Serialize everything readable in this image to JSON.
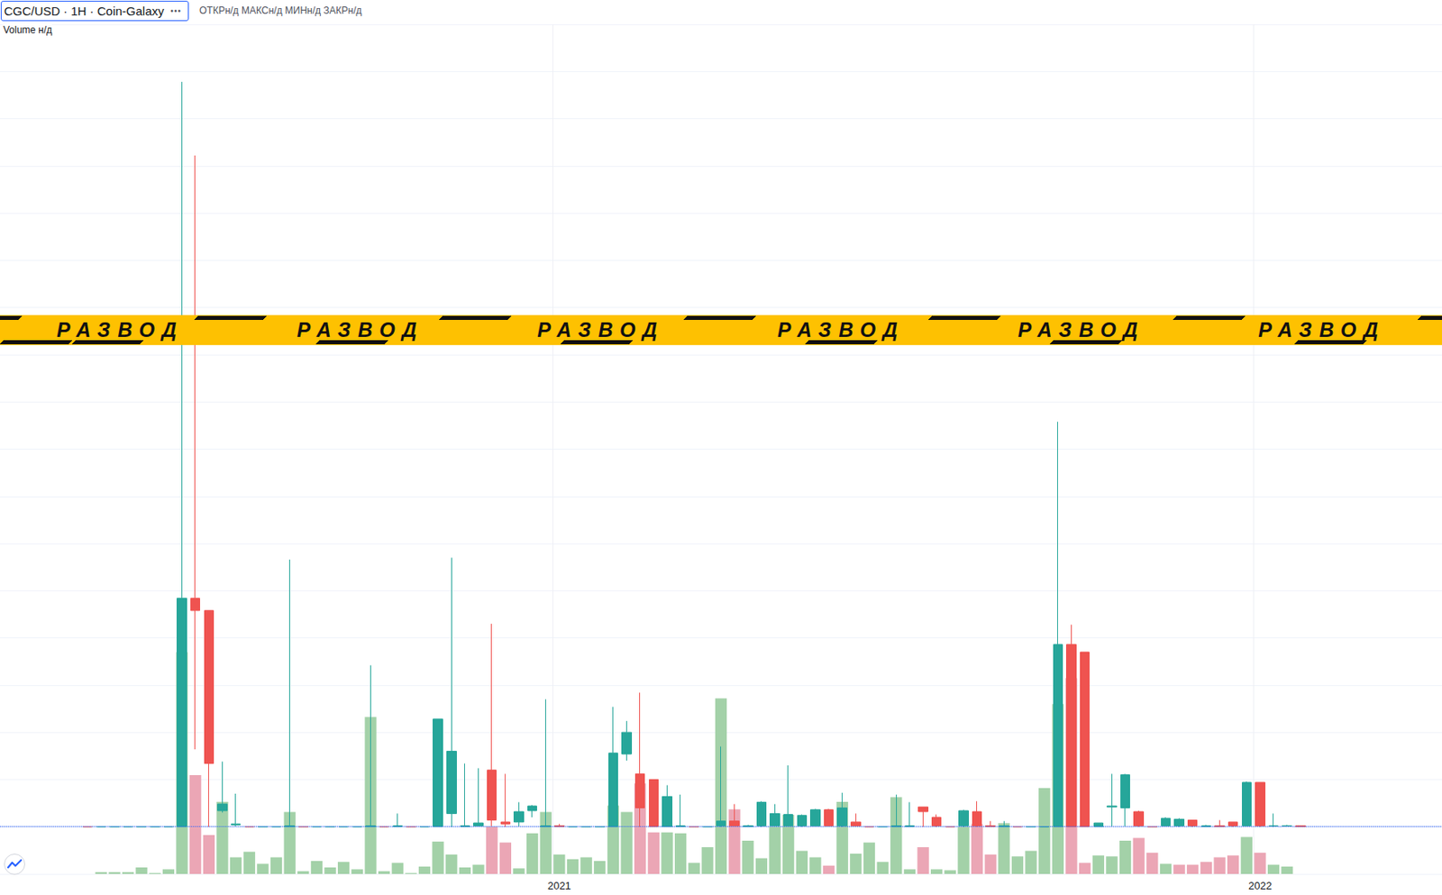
{
  "chart_data": {
    "type": "candlestick",
    "title": "CGC/USD · 1H · Coin-Galaxy",
    "annotations": {
      "menu": "•••",
      "ohlc": "ОТКРн/д МАКСн/д МИНн/д ЗАКРн/д",
      "volume": "Volume н/д",
      "banner": [
        "РАЗВОД",
        "РАЗВОД",
        "РАЗВОД",
        "РАЗВОД",
        "РАЗВОД",
        "РАЗВОД"
      ]
    },
    "categories": [
      null,
      null,
      null,
      null,
      null,
      null,
      null,
      null,
      null,
      null,
      null,
      null,
      null,
      null,
      null,
      null,
      null,
      null,
      null,
      null,
      null,
      null,
      null,
      null,
      null,
      null,
      null,
      null,
      null,
      null,
      null,
      null,
      null,
      null,
      null,
      null,
      null,
      null,
      null,
      null,
      null,
      "2021",
      null,
      null,
      null,
      null,
      null,
      null,
      null,
      null,
      null,
      null,
      null,
      null,
      null,
      null,
      null,
      null,
      null,
      null,
      null,
      null,
      null,
      null,
      null,
      null,
      null,
      null,
      null,
      null,
      null,
      null,
      null,
      null,
      null,
      null,
      null,
      null,
      null,
      null,
      null,
      null,
      null,
      null,
      null,
      null,
      null,
      null,
      null,
      null,
      null,
      null,
      null,
      "2022",
      null,
      null,
      null,
      null,
      null,
      null,
      null,
      null,
      null,
      null,
      null,
      null,
      null
    ],
    "series": [
      {
        "name": "CGC/USD",
        "type": "candlestick",
        "colors": [
          "#26a69a",
          "#ef5350"
        ],
        "open": [
          null,
          null,
          null,
          null,
          null,
          null,
          0,
          0,
          0,
          0,
          0,
          0,
          0,
          0,
          24.2,
          22.9,
          1.7,
          0.2,
          0,
          0,
          0,
          0,
          0,
          0,
          0,
          0,
          0,
          0,
          0,
          0,
          0,
          0,
          0,
          1.4,
          0,
          0.1,
          6.0,
          0.5,
          0.5,
          1.7,
          0,
          0.1,
          0,
          0,
          0,
          0,
          7.7,
          5.6,
          5.0,
          0,
          0,
          0,
          0,
          0.1,
          0.6,
          0,
          0.1,
          0.1,
          0.1,
          0.1,
          0.1,
          1.8,
          0.1,
          0.5,
          0,
          0,
          0,
          0,
          2.1,
          1.0,
          0,
          0.1,
          1.6,
          0.1,
          0,
          0,
          0,
          0,
          0,
          19.3,
          18.5,
          0,
          2.1,
          2.0,
          1.6,
          0,
          0.1,
          0.1,
          0.7,
          0,
          0.1,
          0.5,
          0.1,
          4.7,
          0.1,
          0.1,
          0.1,
          null,
          null,
          null,
          null,
          null,
          null,
          null,
          null,
          null,
          null
        ],
        "close": [
          null,
          null,
          null,
          null,
          null,
          null,
          0,
          0,
          0,
          0,
          0,
          0,
          0,
          24.2,
          22.9,
          6.7,
          2.4,
          0.3,
          0,
          0,
          0,
          0.1,
          0,
          0,
          0,
          0,
          0,
          0.1,
          0,
          0.1,
          0,
          0,
          11.4,
          8.0,
          0.1,
          0.4,
          0.7,
          0.3,
          1.6,
          2.2,
          0.1,
          0,
          0,
          0,
          0,
          7.8,
          10,
          2.0,
          0,
          3.2,
          0.1,
          0,
          0,
          0.6,
          0.1,
          0.1,
          2.6,
          1.4,
          1.3,
          1.2,
          1.8,
          0.1,
          2.0,
          0.1,
          0,
          0,
          0.1,
          0.1,
          1.6,
          0.1,
          0,
          1.7,
          0.1,
          0,
          0.1,
          0,
          0,
          0,
          19.3,
          0,
          0,
          0.4,
          2.2,
          5.5,
          0.1,
          0,
          0.9,
          0.8,
          0.1,
          0.1,
          0,
          0.1,
          4.7,
          0.1,
          0.1,
          0.1,
          0,
          null,
          null,
          null,
          null,
          null,
          null,
          null,
          null,
          null,
          null
        ],
        "low": [
          null,
          null,
          null,
          null,
          null,
          null,
          0,
          0,
          0,
          0,
          0,
          0,
          0,
          0,
          8.2,
          0,
          1.5,
          0,
          0,
          0,
          0,
          0,
          0,
          0,
          0,
          0,
          0,
          0,
          0,
          0,
          0,
          0,
          0,
          0,
          0,
          0,
          0,
          0,
          0,
          1.0,
          0,
          0,
          0,
          0,
          0,
          0,
          7.0,
          0,
          0,
          0,
          0,
          0,
          0,
          0,
          0,
          0,
          0,
          0,
          0,
          0,
          0,
          0,
          0,
          0,
          0,
          0,
          0,
          0,
          0,
          0,
          0,
          0,
          0,
          0,
          0,
          0,
          0,
          0,
          0,
          0,
          0,
          0,
          0,
          0,
          0,
          0,
          0,
          0,
          0,
          0,
          0,
          0,
          0,
          0,
          0,
          0,
          0,
          null,
          null,
          null,
          null,
          null,
          null,
          null,
          null,
          null,
          null
        ],
        "high": [
          null,
          null,
          null,
          null,
          null,
          null,
          0,
          0,
          0,
          0,
          0,
          0,
          0,
          78.9,
          71.1,
          22.9,
          6.9,
          3.5,
          0,
          0,
          0,
          28.3,
          0,
          0,
          0,
          0,
          0,
          17.1,
          0,
          1.4,
          0,
          0,
          11.4,
          28.5,
          6.7,
          6.2,
          21.5,
          5.6,
          2.6,
          2.3,
          13.5,
          0.3,
          0,
          0,
          0,
          12.7,
          11.2,
          14.2,
          5.0,
          4.4,
          3.4,
          0,
          0,
          8.5,
          2.4,
          0.2,
          2.7,
          2.4,
          6.5,
          1.3,
          1.9,
          1.9,
          3.6,
          1.4,
          0,
          0,
          3.4,
          2.6,
          2.1,
          1.3,
          0,
          1.8,
          2.7,
          0.6,
          0.6,
          0,
          0,
          0,
          42.9,
          21.4,
          18.5,
          0.4,
          5.6,
          5.6,
          1.7,
          0,
          1.0,
          0.9,
          0.7,
          0.2,
          0.7,
          0.5,
          4.8,
          4.7,
          1.4,
          0.2,
          0.1,
          null,
          null,
          null,
          null,
          null,
          null,
          null,
          null,
          null,
          null
        ]
      },
      {
        "name": "Volume",
        "type": "bar",
        "axis": "y2",
        "values": [
          null,
          null,
          null,
          null,
          null,
          null,
          null,
          1,
          1,
          1,
          3.5,
          0.5,
          2.5,
          120,
          53.5,
          21,
          39,
          9,
          12,
          5.5,
          9,
          33.5,
          1.5,
          7,
          3.5,
          6.5,
          2.5,
          85,
          1.5,
          6,
          0.5,
          4,
          17.5,
          10.5,
          3.5,
          5,
          25.5,
          17,
          3,
          22,
          33.5,
          10.5,
          8,
          9,
          7,
          37,
          33.5,
          49,
          22.5,
          22.5,
          22,
          6,
          14.5,
          95,
          35,
          18,
          8.5,
          25.5,
          32,
          12.5,
          9,
          4.5,
          39,
          11,
          17,
          6.5,
          41.5,
          2.5,
          14.5,
          2.5,
          2,
          25.5,
          27,
          10.5,
          27.5,
          9.5,
          12.5,
          46.5,
          92,
          106,
          6,
          10,
          9.5,
          18,
          19.5,
          11.5,
          5.5,
          5,
          5,
          6.5,
          9,
          10,
          20,
          11.5,
          5,
          4,
          null,
          null,
          null,
          null,
          null,
          null,
          null,
          null,
          null,
          null,
          null
        ],
        "colors": [
          null,
          null,
          null,
          null,
          null,
          null,
          null,
          "#a3d1a8",
          "#a3d1a8",
          "#a3d1a8",
          "#a3d1a8",
          "#a3d1a8",
          "#a3d1a8",
          "#a3d1a8",
          "#eba6b5",
          "#eba6b5",
          "#a3d1a8",
          "#a3d1a8",
          "#a3d1a8",
          "#a3d1a8",
          "#a3d1a8",
          "#a3d1a8",
          "#a3d1a8",
          "#a3d1a8",
          "#a3d1a8",
          "#a3d1a8",
          "#a3d1a8",
          "#a3d1a8",
          "#a3d1a8",
          "#a3d1a8",
          "#a3d1a8",
          "#a3d1a8",
          "#a3d1a8",
          "#a3d1a8",
          "#a3d1a8",
          "#a3d1a8",
          "#eba6b5",
          "#eba6b5",
          "#a3d1a8",
          "#a3d1a8",
          "#a3d1a8",
          "#a3d1a8",
          "#a3d1a8",
          "#a3d1a8",
          "#a3d1a8",
          "#a3d1a8",
          "#a3d1a8",
          "#eba6b5",
          "#eba6b5",
          "#a3d1a8",
          "#a3d1a8",
          "#a3d1a8",
          "#a3d1a8",
          "#a3d1a8",
          "#eba6b5",
          "#a3d1a8",
          "#a3d1a8",
          "#a3d1a8",
          "#a3d1a8",
          "#a3d1a8",
          "#a3d1a8",
          "#eba6b5",
          "#a3d1a8",
          "#a3d1a8",
          "#a3d1a8",
          "#a3d1a8",
          "#a3d1a8",
          "#a3d1a8",
          "#eba6b5",
          "#a3d1a8",
          "#a3d1a8",
          "#a3d1a8",
          "#eba6b5",
          "#eba6b5",
          "#a3d1a8",
          "#a3d1a8",
          "#a3d1a8",
          "#a3d1a8",
          "#a3d1a8",
          "#eba6b5",
          "#eba6b5",
          "#a3d1a8",
          "#a3d1a8",
          "#a3d1a8",
          "#eba6b5",
          "#eba6b5",
          "#a3d1a8",
          "#eba6b5",
          "#eba6b5",
          "#eba6b5",
          "#eba6b5",
          "#eba6b5",
          "#a3d1a8",
          "#eba6b5",
          "#a3d1a8",
          "#a3d1a8",
          null,
          null,
          null,
          null,
          null,
          null,
          null,
          null,
          null,
          null,
          null
        ]
      }
    ],
    "ylim": [
      -5,
      85
    ],
    "yticks": [
      -5,
      0,
      5,
      10,
      15,
      20,
      25,
      30,
      35,
      40,
      45,
      50,
      55,
      60,
      65,
      70,
      75,
      80,
      85
    ],
    "y2lim": [
      0,
      460
    ],
    "y2ticks": [
      0,
      460
    ],
    "grid": true,
    "tick_labels": "x"
  }
}
